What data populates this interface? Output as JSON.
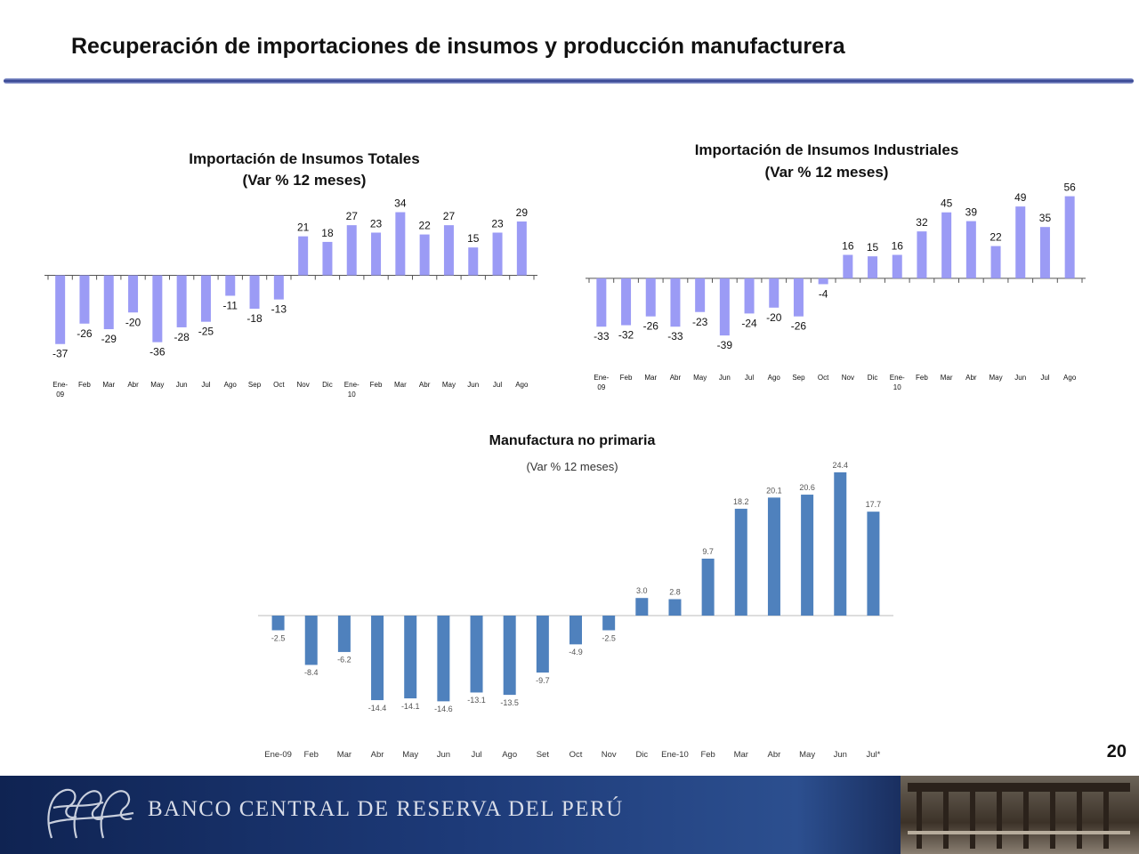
{
  "slide": {
    "title": "Recuperación de importaciones de insumos y producción manufacturera",
    "page_number": "20"
  },
  "footer": {
    "bank_name": "BANCO CENTRAL DE RESERVA DEL PERÚ",
    "logo_icon": "bcrp-monogram-logo"
  },
  "colors": {
    "lavender_bar": "#9B9BF5",
    "blue_bar": "#4F81BD",
    "footer_blue": "#1d3a78"
  },
  "chart_data": [
    {
      "id": "insumos-totales",
      "type": "bar",
      "title": "Importación de Insumos Totales",
      "subtitle": "(Var % 12 meses)",
      "categories": [
        "Ene-09",
        "Feb",
        "Mar",
        "Abr",
        "May",
        "Jun",
        "Jul",
        "Ago",
        "Sep",
        "Oct",
        "Nov",
        "Dic",
        "Ene-10",
        "Feb",
        "Mar",
        "Abr",
        "May",
        "Jun",
        "Jul",
        "Ago"
      ],
      "values": [
        -37,
        -26,
        -29,
        -20,
        -36,
        -28,
        -25,
        -11,
        -18,
        -13,
        21,
        18,
        27,
        23,
        34,
        22,
        27,
        15,
        23,
        29
      ],
      "labels": [
        "-37",
        "-26",
        "-29",
        "-20",
        "-36",
        "-28",
        "-25",
        "-11",
        "-18",
        "-13",
        "21",
        "18",
        "27",
        "23",
        "34",
        "22",
        "27",
        "15",
        "23",
        "29"
      ],
      "xlabel": "",
      "ylabel": "",
      "ylim": [
        -40,
        40
      ],
      "grid": false,
      "legend": "none",
      "color": "#9B9BF5"
    },
    {
      "id": "insumos-industriales",
      "type": "bar",
      "title": "Importación de Insumos Industriales",
      "subtitle": "(Var % 12 meses)",
      "categories": [
        "Ene-09",
        "Feb",
        "Mar",
        "Abr",
        "May",
        "Jun",
        "Jul",
        "Ago",
        "Sep",
        "Oct",
        "Nov",
        "Dic",
        "Ene-10",
        "Feb",
        "Mar",
        "Abr",
        "May",
        "Jun",
        "Jul",
        "Ago"
      ],
      "values": [
        -33,
        -32,
        -26,
        -33,
        -23,
        -39,
        -24,
        -20,
        -26,
        -4,
        16,
        15,
        16,
        32,
        45,
        39,
        22,
        49,
        35,
        56
      ],
      "labels": [
        "-33",
        "-32",
        "-26",
        "-33",
        "-23",
        "-39",
        "-24",
        "-20",
        "-26",
        "-4",
        "16",
        "15",
        "16",
        "32",
        "45",
        "39",
        "22",
        "49",
        "35",
        "56"
      ],
      "xlabel": "",
      "ylabel": "",
      "ylim": [
        -45,
        60
      ],
      "grid": false,
      "legend": "none",
      "color": "#9B9BF5"
    },
    {
      "id": "manufactura-no-primaria",
      "type": "bar",
      "title": "Manufactura no primaria",
      "subtitle": "(Var % 12 meses)",
      "categories": [
        "Ene-09",
        "Feb",
        "Mar",
        "Abr",
        "May",
        "Jun",
        "Jul",
        "Ago",
        "Set",
        "Oct",
        "Nov",
        "Dic",
        "Ene-10",
        "Feb",
        "Mar",
        "Abr",
        "May",
        "Jun",
        "Jul*"
      ],
      "values": [
        -2.5,
        -8.4,
        -6.2,
        -14.4,
        -14.1,
        -14.6,
        -13.1,
        -13.5,
        -9.7,
        -4.9,
        -2.5,
        3.0,
        2.8,
        9.7,
        18.2,
        20.1,
        20.6,
        24.4,
        17.7
      ],
      "labels": [
        "-2.5",
        "-8.4",
        "-6.2",
        "-14.4",
        "-14.1",
        "-14.6",
        "-13.1",
        "-13.5",
        "-9.7",
        "-4.9",
        "-2.5",
        "3.0",
        "2.8",
        "9.7",
        "18.2",
        "20.1",
        "20.6",
        "24.4",
        "17.7"
      ],
      "xlabel": "",
      "ylabel": "",
      "ylim": [
        -15,
        25
      ],
      "grid": false,
      "legend": "none",
      "color": "#4F81BD"
    }
  ]
}
